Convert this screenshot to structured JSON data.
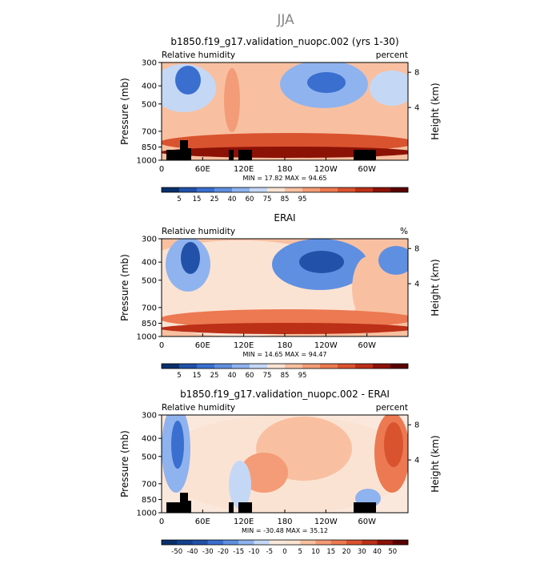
{
  "figure": {
    "season": "JJA"
  },
  "chart_data": [
    {
      "type": "heatmap",
      "title": "b1850.f19_g17.validation_nuopc.002 (yrs 1-30)",
      "left_label": "Relative humidity",
      "right_label": "percent",
      "ylabel": "Pressure (mb)",
      "ylabel_right": "Height (km)",
      "y_ticks": [
        "300",
        "400",
        "500",
        "700",
        "850",
        "1000"
      ],
      "y_right_ticks": [
        "8",
        "4"
      ],
      "x_ticks": [
        "0",
        "60E",
        "120E",
        "180",
        "120W",
        "60W"
      ],
      "stats": {
        "min_label": "MIN =",
        "min": "17.82",
        "max_label": "MAX =",
        "max": "94.65"
      },
      "colorbar_labels": [
        "5",
        "15",
        "25",
        "40",
        "60",
        "75",
        "85",
        "95"
      ],
      "colorbar_colors": [
        "#08306b",
        "#2151a8",
        "#3a6fd0",
        "#5f8fe0",
        "#8fb3ee",
        "#c4d8f6",
        "#fbe3d3",
        "#f8c0a1",
        "#f49c77",
        "#ec7951",
        "#d9532f",
        "#bb3017",
        "#8c1206",
        "#5a0000"
      ]
    },
    {
      "type": "heatmap",
      "title": "ERAI",
      "left_label": "Relative humidity",
      "right_label": "%",
      "ylabel": "Pressure (mb)",
      "ylabel_right": "Height (km)",
      "y_ticks": [
        "300",
        "400",
        "500",
        "700",
        "850",
        "1000"
      ],
      "y_right_ticks": [
        "8",
        "4"
      ],
      "x_ticks": [
        "0",
        "60E",
        "120E",
        "180",
        "120W",
        "60W"
      ],
      "stats": {
        "min_label": "MIN =",
        "min": "14.65",
        "max_label": "MAX =",
        "max": "94.47"
      },
      "colorbar_labels": [
        "5",
        "15",
        "25",
        "40",
        "60",
        "75",
        "85",
        "95"
      ],
      "colorbar_colors": [
        "#08306b",
        "#2151a8",
        "#3a6fd0",
        "#5f8fe0",
        "#8fb3ee",
        "#c4d8f6",
        "#fbe3d3",
        "#f8c0a1",
        "#f49c77",
        "#ec7951",
        "#d9532f",
        "#bb3017",
        "#8c1206",
        "#5a0000"
      ]
    },
    {
      "type": "heatmap",
      "title": "b1850.f19_g17.validation_nuopc.002 - ERAI",
      "left_label": "Relative humidity",
      "right_label": "percent",
      "ylabel": "Pressure (mb)",
      "ylabel_right": "Height (km)",
      "y_ticks": [
        "300",
        "400",
        "500",
        "700",
        "850",
        "1000"
      ],
      "y_right_ticks": [
        "8",
        "4"
      ],
      "x_ticks": [
        "0",
        "60E",
        "120E",
        "180",
        "120W",
        "60W"
      ],
      "stats": {
        "min_label": "MIN =",
        "min": "-30.48",
        "max_label": "MAX =",
        "max": "35.12"
      },
      "colorbar_labels": [
        "-50",
        "-40",
        "-30",
        "-20",
        "-15",
        "-10",
        "-5",
        "0",
        "5",
        "10",
        "15",
        "20",
        "30",
        "40",
        "50"
      ],
      "colorbar_colors": [
        "#08306b",
        "#14418f",
        "#2151a8",
        "#3a6fd0",
        "#5f8fe0",
        "#8fb3ee",
        "#c4d8f6",
        "#fbe8dc",
        "#fbe3d3",
        "#f8c0a1",
        "#f49c77",
        "#ec7951",
        "#d9532f",
        "#bb3017",
        "#8c1206",
        "#5a0000"
      ]
    }
  ]
}
